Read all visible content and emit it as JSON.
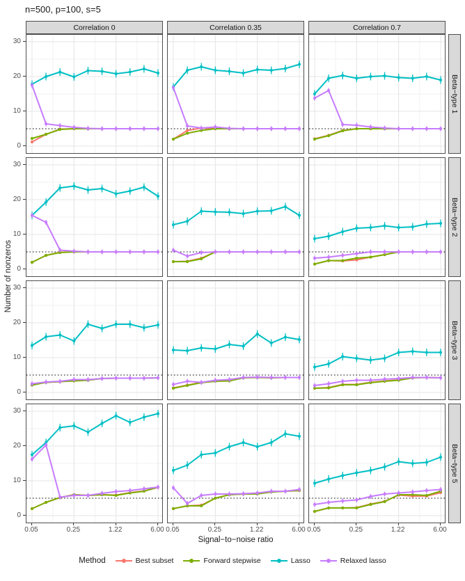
{
  "chart_data": {
    "type": "line",
    "title": "n=500, p=100, s=5",
    "xlabel": "Signal−to−noise ratio",
    "ylabel": "Number of nonzeros",
    "x": [
      0.05,
      0.09,
      0.14,
      0.25,
      0.42,
      0.71,
      1.22,
      2.07,
      3.52,
      6.0
    ],
    "x_tick_labels": [
      "0.05",
      "0.25",
      "1.22",
      "6.00"
    ],
    "x_tick_index": [
      0,
      3,
      6,
      9
    ],
    "y_ticks": [
      "0",
      "10",
      "20",
      "30"
    ],
    "y_tick_values": [
      0,
      10,
      20,
      30
    ],
    "y_minor_values": [
      5,
      15,
      25
    ],
    "ylim": [
      -2,
      32
    ],
    "dotted_line_y": 5,
    "grid": "on",
    "legend_position": "bottom",
    "col_facets": [
      "Correlation 0",
      "Correlation 0.35",
      "Correlation 0.7"
    ],
    "row_facets": [
      "Beta−type 1",
      "Beta−type 2",
      "Beta−type 3",
      "Beta−type 5"
    ],
    "legend": {
      "title": "Method",
      "items": [
        {
          "label": "Best subset",
          "color": "#F8766D"
        },
        {
          "label": "Forward stepwise",
          "color": "#7CAE00"
        },
        {
          "label": "Lasso",
          "color": "#00BFC4"
        },
        {
          "label": "Relaxed lasso",
          "color": "#C77CFF"
        }
      ]
    },
    "series_order": [
      "Best subset",
      "Forward stepwise",
      "Lasso",
      "Relaxed lasso"
    ],
    "error_bar_halfwidth": {
      "Best subset": 0.3,
      "Forward stepwise": 0.4,
      "Lasso": 1.1,
      "Relaxed lasso": 0.7
    },
    "panels": [
      {
        "row": "Beta−type 1",
        "col": "Correlation 0",
        "series": {
          "Best subset": [
            1.2,
            3.4,
            4.9,
            5,
            5,
            5,
            5,
            5,
            5,
            5
          ],
          "Forward stepwise": [
            2.2,
            3.4,
            4.8,
            5,
            5,
            5,
            5,
            5,
            5,
            5
          ],
          "Lasso": [
            17.8,
            20,
            21.3,
            19.9,
            21.7,
            21.5,
            20.8,
            21.3,
            22.2,
            21
          ],
          "Relaxed lasso": [
            17.5,
            6.4,
            5.9,
            5.4,
            5.1,
            5,
            5,
            5,
            5,
            5
          ]
        }
      },
      {
        "row": "Beta−type 1",
        "col": "Correlation 0.35",
        "series": {
          "Best subset": [
            2,
            4.5,
            5.2,
            5,
            5,
            5,
            5,
            5,
            5,
            5
          ],
          "Forward stepwise": [
            2,
            3.7,
            4.5,
            5,
            5,
            5,
            5,
            5,
            5,
            5
          ],
          "Lasso": [
            17,
            21.8,
            22.8,
            21.8,
            21.5,
            21,
            22,
            21.8,
            22.3,
            23.5
          ],
          "Relaxed lasso": [
            16.8,
            5.8,
            5.2,
            5.5,
            5.1,
            5,
            5,
            5,
            5,
            5
          ]
        }
      },
      {
        "row": "Beta−type 1",
        "col": "Correlation 0.7",
        "series": {
          "Best subset": [
            2.1,
            3.1,
            4.5,
            5,
            5,
            5,
            5,
            5,
            5,
            5
          ],
          "Forward stepwise": [
            2,
            3,
            4.4,
            5,
            5,
            5,
            5,
            5,
            5,
            5
          ],
          "Lasso": [
            15,
            19.5,
            20.3,
            19.5,
            20,
            20.2,
            19.7,
            19.5,
            20,
            19
          ],
          "Relaxed lasso": [
            13.8,
            16,
            6.2,
            6,
            5.5,
            5.2,
            5,
            5,
            5,
            5
          ]
        }
      },
      {
        "row": "Beta−type 2",
        "col": "Correlation 0",
        "series": {
          "Best subset": [
            2,
            4,
            4.9,
            5,
            5,
            5,
            5,
            5,
            5,
            5
          ],
          "Forward stepwise": [
            2,
            4,
            4.8,
            5,
            5,
            5,
            5,
            5,
            5,
            5
          ],
          "Lasso": [
            15.5,
            19.3,
            23.4,
            23.9,
            22.8,
            23.2,
            21.7,
            22.5,
            23.6,
            21
          ],
          "Relaxed lasso": [
            15.5,
            13.5,
            5.5,
            5.2,
            5,
            5,
            5,
            5,
            5,
            5
          ]
        }
      },
      {
        "row": "Beta−type 2",
        "col": "Correlation 0.35",
        "series": {
          "Best subset": [
            2.2,
            2.3,
            3.2,
            5,
            5,
            5,
            5,
            5,
            5,
            5
          ],
          "Forward stepwise": [
            2.2,
            2.2,
            3,
            5,
            5,
            5,
            5,
            5,
            5,
            5
          ],
          "Lasso": [
            12.8,
            13.8,
            16.7,
            16.5,
            16.4,
            16,
            16.7,
            16.8,
            18,
            15.5
          ],
          "Relaxed lasso": [
            5.5,
            3.8,
            4.8,
            5,
            5,
            5,
            5,
            5,
            5,
            5
          ]
        }
      },
      {
        "row": "Beta−type 2",
        "col": "Correlation 0.7",
        "series": {
          "Best subset": [
            1.5,
            2.5,
            2.4,
            2.7,
            3.5,
            4.2,
            5,
            5,
            5,
            5
          ],
          "Forward stepwise": [
            1.5,
            2.5,
            2.5,
            3.2,
            3.5,
            4.2,
            5,
            5,
            5,
            5
          ],
          "Lasso": [
            8.8,
            9.5,
            10.8,
            11.8,
            12,
            12.5,
            12,
            12.2,
            13,
            13.2
          ],
          "Relaxed lasso": [
            3.2,
            3.5,
            4,
            4.5,
            5,
            5,
            5,
            5,
            5,
            5
          ]
        }
      },
      {
        "row": "Beta−type 3",
        "col": "Correlation 0",
        "series": {
          "Best subset": [
            2.2,
            2.9,
            3.1,
            3.4,
            3.6,
            4,
            4.1,
            4.1,
            4.1,
            4.2
          ],
          "Forward stepwise": [
            2.1,
            2.9,
            3.1,
            3.3,
            3.5,
            4,
            4.1,
            4.1,
            4.1,
            4.2
          ],
          "Lasso": [
            13.5,
            16,
            16.5,
            14.8,
            19.6,
            18.4,
            19.6,
            19.6,
            18.6,
            19.4
          ],
          "Relaxed lasso": [
            2.5,
            3,
            3.2,
            3.7,
            3.7,
            4,
            4.1,
            4.1,
            4.1,
            4.2
          ]
        }
      },
      {
        "row": "Beta−type 3",
        "col": "Correlation 0.35",
        "series": {
          "Best subset": [
            1.3,
            2.1,
            2.9,
            3.3,
            3.4,
            4.2,
            4.3,
            4.2,
            4.3,
            4.3
          ],
          "Forward stepwise": [
            1.2,
            2,
            2.8,
            3.2,
            3.3,
            4.2,
            4.3,
            4.2,
            4.3,
            4.3
          ],
          "Lasso": [
            12.2,
            12,
            12.8,
            12.5,
            13.8,
            13.3,
            16.8,
            14.2,
            15.9,
            15.2
          ],
          "Relaxed lasso": [
            2.3,
            3.2,
            2.9,
            3.5,
            3.7,
            4.3,
            4.4,
            4.3,
            4.3,
            4.3
          ]
        }
      },
      {
        "row": "Beta−type 3",
        "col": "Correlation 0.7",
        "series": {
          "Best subset": [
            1.2,
            1.4,
            2.3,
            2.3,
            2.9,
            3.3,
            3.6,
            4.2,
            4.3,
            4.2
          ],
          "Forward stepwise": [
            1.2,
            1.3,
            2.2,
            2.2,
            2.8,
            3.2,
            3.5,
            4.2,
            4.3,
            4.2
          ],
          "Lasso": [
            7.3,
            8.2,
            10.3,
            9.8,
            9.3,
            9.8,
            11.5,
            11.8,
            11.5,
            11.5
          ],
          "Relaxed lasso": [
            2,
            2.5,
            3.2,
            3.5,
            3.5,
            3.8,
            4,
            4.3,
            4.3,
            4.2
          ]
        }
      },
      {
        "row": "Beta−type 5",
        "col": "Correlation 0",
        "series": {
          "Best subset": [
            2,
            3.8,
            5.2,
            6,
            5.8,
            6,
            5.9,
            6.6,
            7.1,
            8.1
          ],
          "Forward stepwise": [
            2,
            3.8,
            5.2,
            6,
            5.8,
            6,
            5.8,
            6.5,
            7,
            8.2
          ],
          "Lasso": [
            17.5,
            21,
            25.3,
            25.8,
            24,
            26.5,
            28.7,
            26.8,
            28.3,
            29.3
          ],
          "Relaxed lasso": [
            16.2,
            20.3,
            5.3,
            5.8,
            5.8,
            6.4,
            6.9,
            7.2,
            7.7,
            8.2
          ]
        }
      },
      {
        "row": "Beta−type 5",
        "col": "Correlation 0.35",
        "series": {
          "Best subset": [
            2,
            2.8,
            3,
            5,
            6,
            6.2,
            6.3,
            6.8,
            7,
            7.2
          ],
          "Forward stepwise": [
            2,
            2.8,
            2.8,
            5,
            6,
            6.2,
            6.2,
            6.8,
            7,
            7.2
          ],
          "Lasso": [
            13,
            14.5,
            17.5,
            18,
            19.8,
            21,
            19.8,
            21,
            23.5,
            22.8
          ],
          "Relaxed lasso": [
            8,
            3.5,
            5.8,
            6.2,
            6.2,
            6.3,
            6.5,
            7,
            7,
            7.5
          ]
        }
      },
      {
        "row": "Beta−type 5",
        "col": "Correlation 0.7",
        "series": {
          "Best subset": [
            1.2,
            2.2,
            2.2,
            2.3,
            3.3,
            4.1,
            5.9,
            5.6,
            5.6,
            6.6
          ],
          "Forward stepwise": [
            1.2,
            2.2,
            2.2,
            2.2,
            3.2,
            4,
            6,
            6,
            5.8,
            7
          ],
          "Lasso": [
            9.3,
            10.5,
            11.5,
            12.3,
            13,
            14,
            15.5,
            15,
            15.3,
            16.8
          ],
          "Relaxed lasso": [
            3.2,
            3.8,
            4.2,
            4.5,
            5.5,
            6.2,
            6.5,
            6.8,
            7.2,
            7.5
          ]
        }
      }
    ],
    "style": {
      "strip_fill": "#d9d9d9",
      "panel_border": "#4d4d4d",
      "grid_major": "#e4e4e4",
      "grid_minor": "#f2f2f2",
      "dotted_line_color": "#000000"
    }
  }
}
